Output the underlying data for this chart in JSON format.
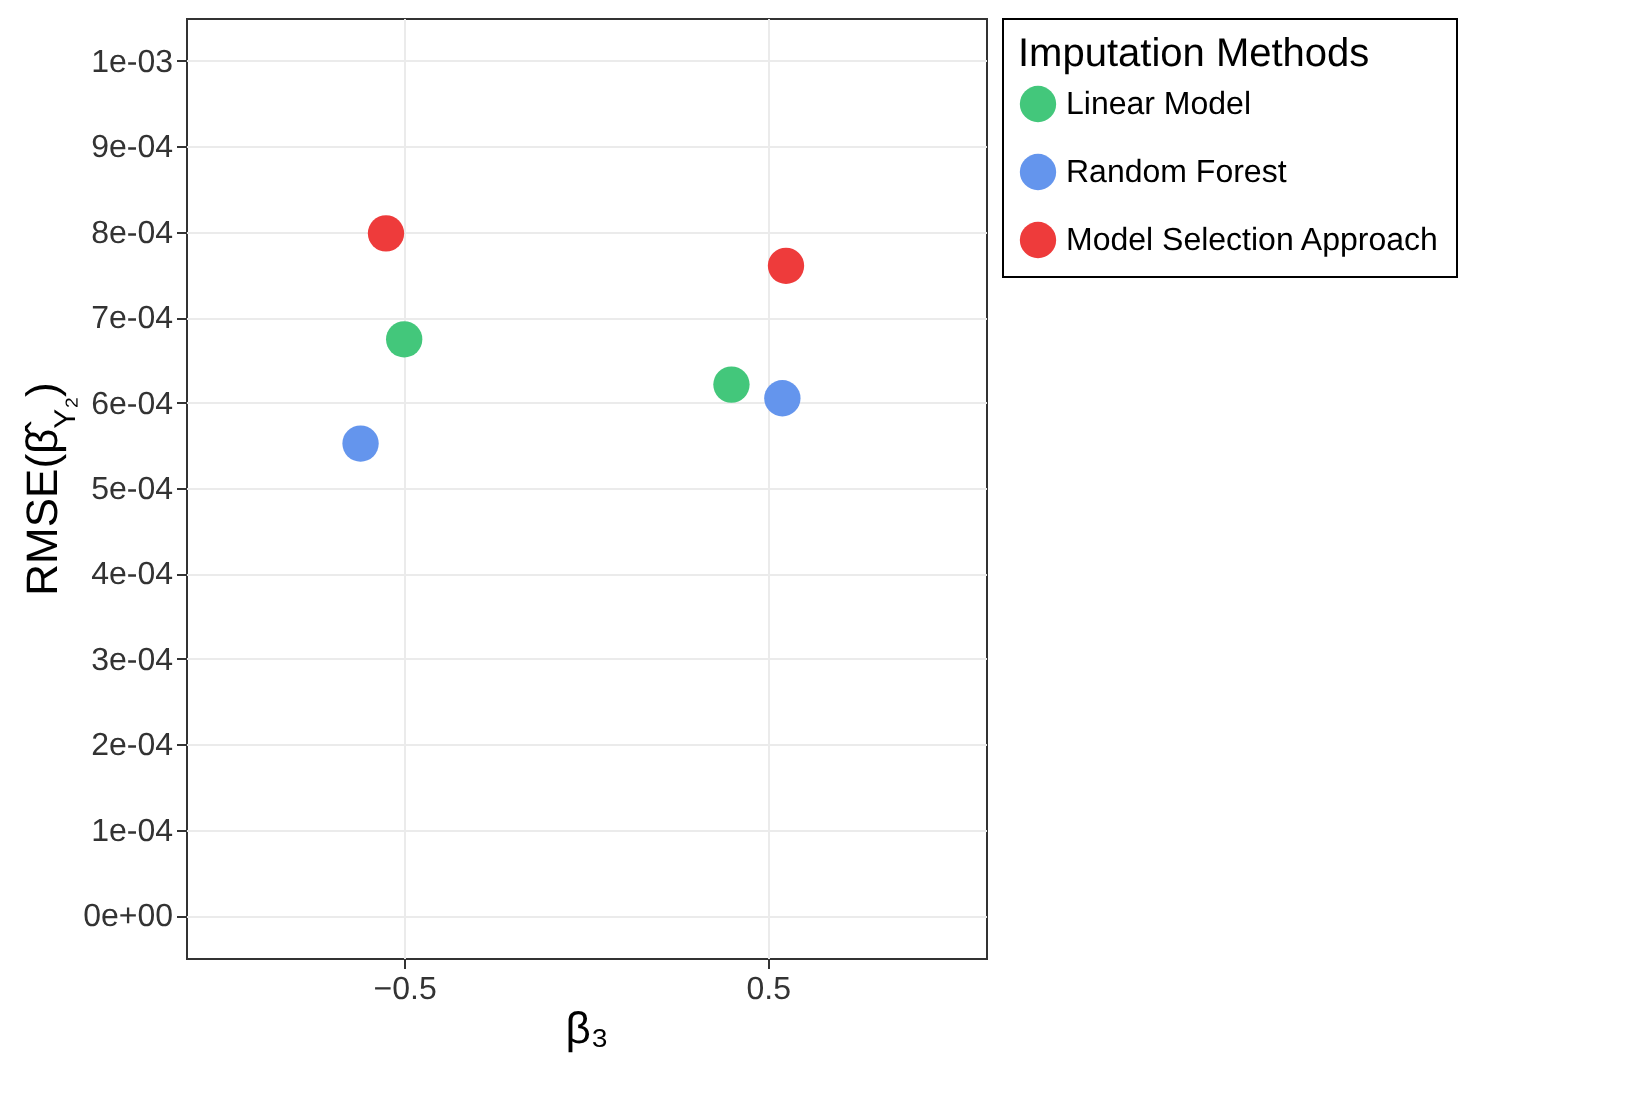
{
  "chart_data": {
    "type": "scatter",
    "xlabel": "β₃",
    "ylabel": "RMSE(β̂$_{Y₂}$)",
    "legend_title": "Imputation Methods",
    "xlim": [
      -1.1,
      1.1
    ],
    "xticks": [
      {
        "value": -0.5,
        "label": "−0.5"
      },
      0.5
    ],
    "ylim": [
      -5e-05,
      0.00105
    ],
    "yticks": [
      {
        "value": 0,
        "label": "0e+00"
      },
      {
        "value": 0.0001,
        "label": "1e-04"
      },
      {
        "value": 0.0002,
        "label": "2e-04"
      },
      {
        "value": 0.0003,
        "label": "3e-04"
      },
      {
        "value": 0.0004,
        "label": "4e-04"
      },
      {
        "value": 0.0005,
        "label": "5e-04"
      },
      {
        "value": 0.0006,
        "label": "6e-04"
      },
      {
        "value": 0.0007,
        "label": "7e-04"
      },
      {
        "value": 0.0008,
        "label": "8e-04"
      },
      {
        "value": 0.0009,
        "label": "9e-04"
      },
      {
        "value": 0.001,
        "label": "1e-03"
      }
    ],
    "grid": true,
    "legend": "right",
    "marker": "circle",
    "series": [
      {
        "name": "Linear Model",
        "color": "#43c77b",
        "x": [
          -0.5,
          0.4
        ],
        "values": [
          0.000674,
          0.000621
        ]
      },
      {
        "name": "Random Forest",
        "color": "#6495ed",
        "x": [
          -0.62,
          0.54
        ],
        "values": [
          0.000552,
          0.000605
        ]
      },
      {
        "name": "Model Selection Approach",
        "color": "#ee3b3b",
        "x": [
          -0.55,
          0.55
        ],
        "values": [
          0.000798,
          0.00076
        ]
      }
    ]
  }
}
